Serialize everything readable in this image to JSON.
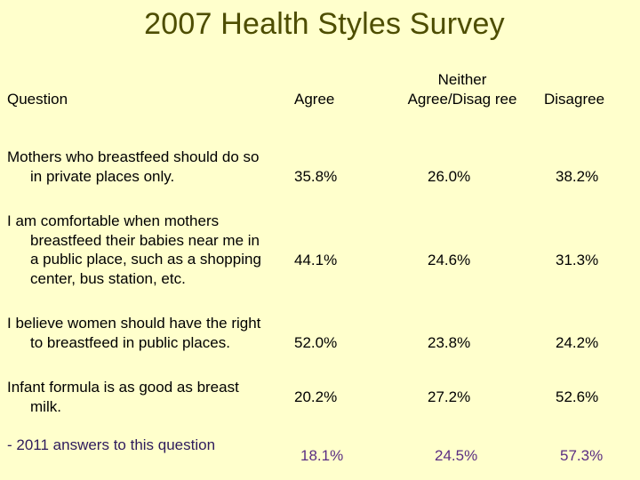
{
  "title": "2007 Health Styles Survey",
  "headers": {
    "question": "Question",
    "agree": "Agree",
    "neither": "Neither Agree/Disag ree",
    "disagree": "Disagree"
  },
  "rows": [
    {
      "question": "Mothers who breastfeed should do so in private places only.",
      "agree": "35.8%",
      "neither": "26.0%",
      "disagree": "38.2%"
    },
    {
      "question": "I am comfortable when mothers breastfeed their babies near me in a public place, such as a shopping center, bus station, etc.",
      "agree": "44.1%",
      "neither": "24.6%",
      "disagree": "31.3%"
    },
    {
      "question": "I believe women should have the right to breastfeed in public places.",
      "agree": "52.0%",
      "neither": "23.8%",
      "disagree": "24.2%"
    },
    {
      "question": "Infant formula is as good as breast milk.",
      "agree": "20.2%",
      "neither": "27.2%",
      "disagree": "52.6%"
    },
    {
      "question": "- 2011 answers to this question",
      "agree": "18.1%",
      "neither": "24.5%",
      "disagree": "57.3%"
    }
  ],
  "colors": {
    "background": "#ffffcc",
    "title": "#4d4d00",
    "highlight": "#5a2d82"
  }
}
